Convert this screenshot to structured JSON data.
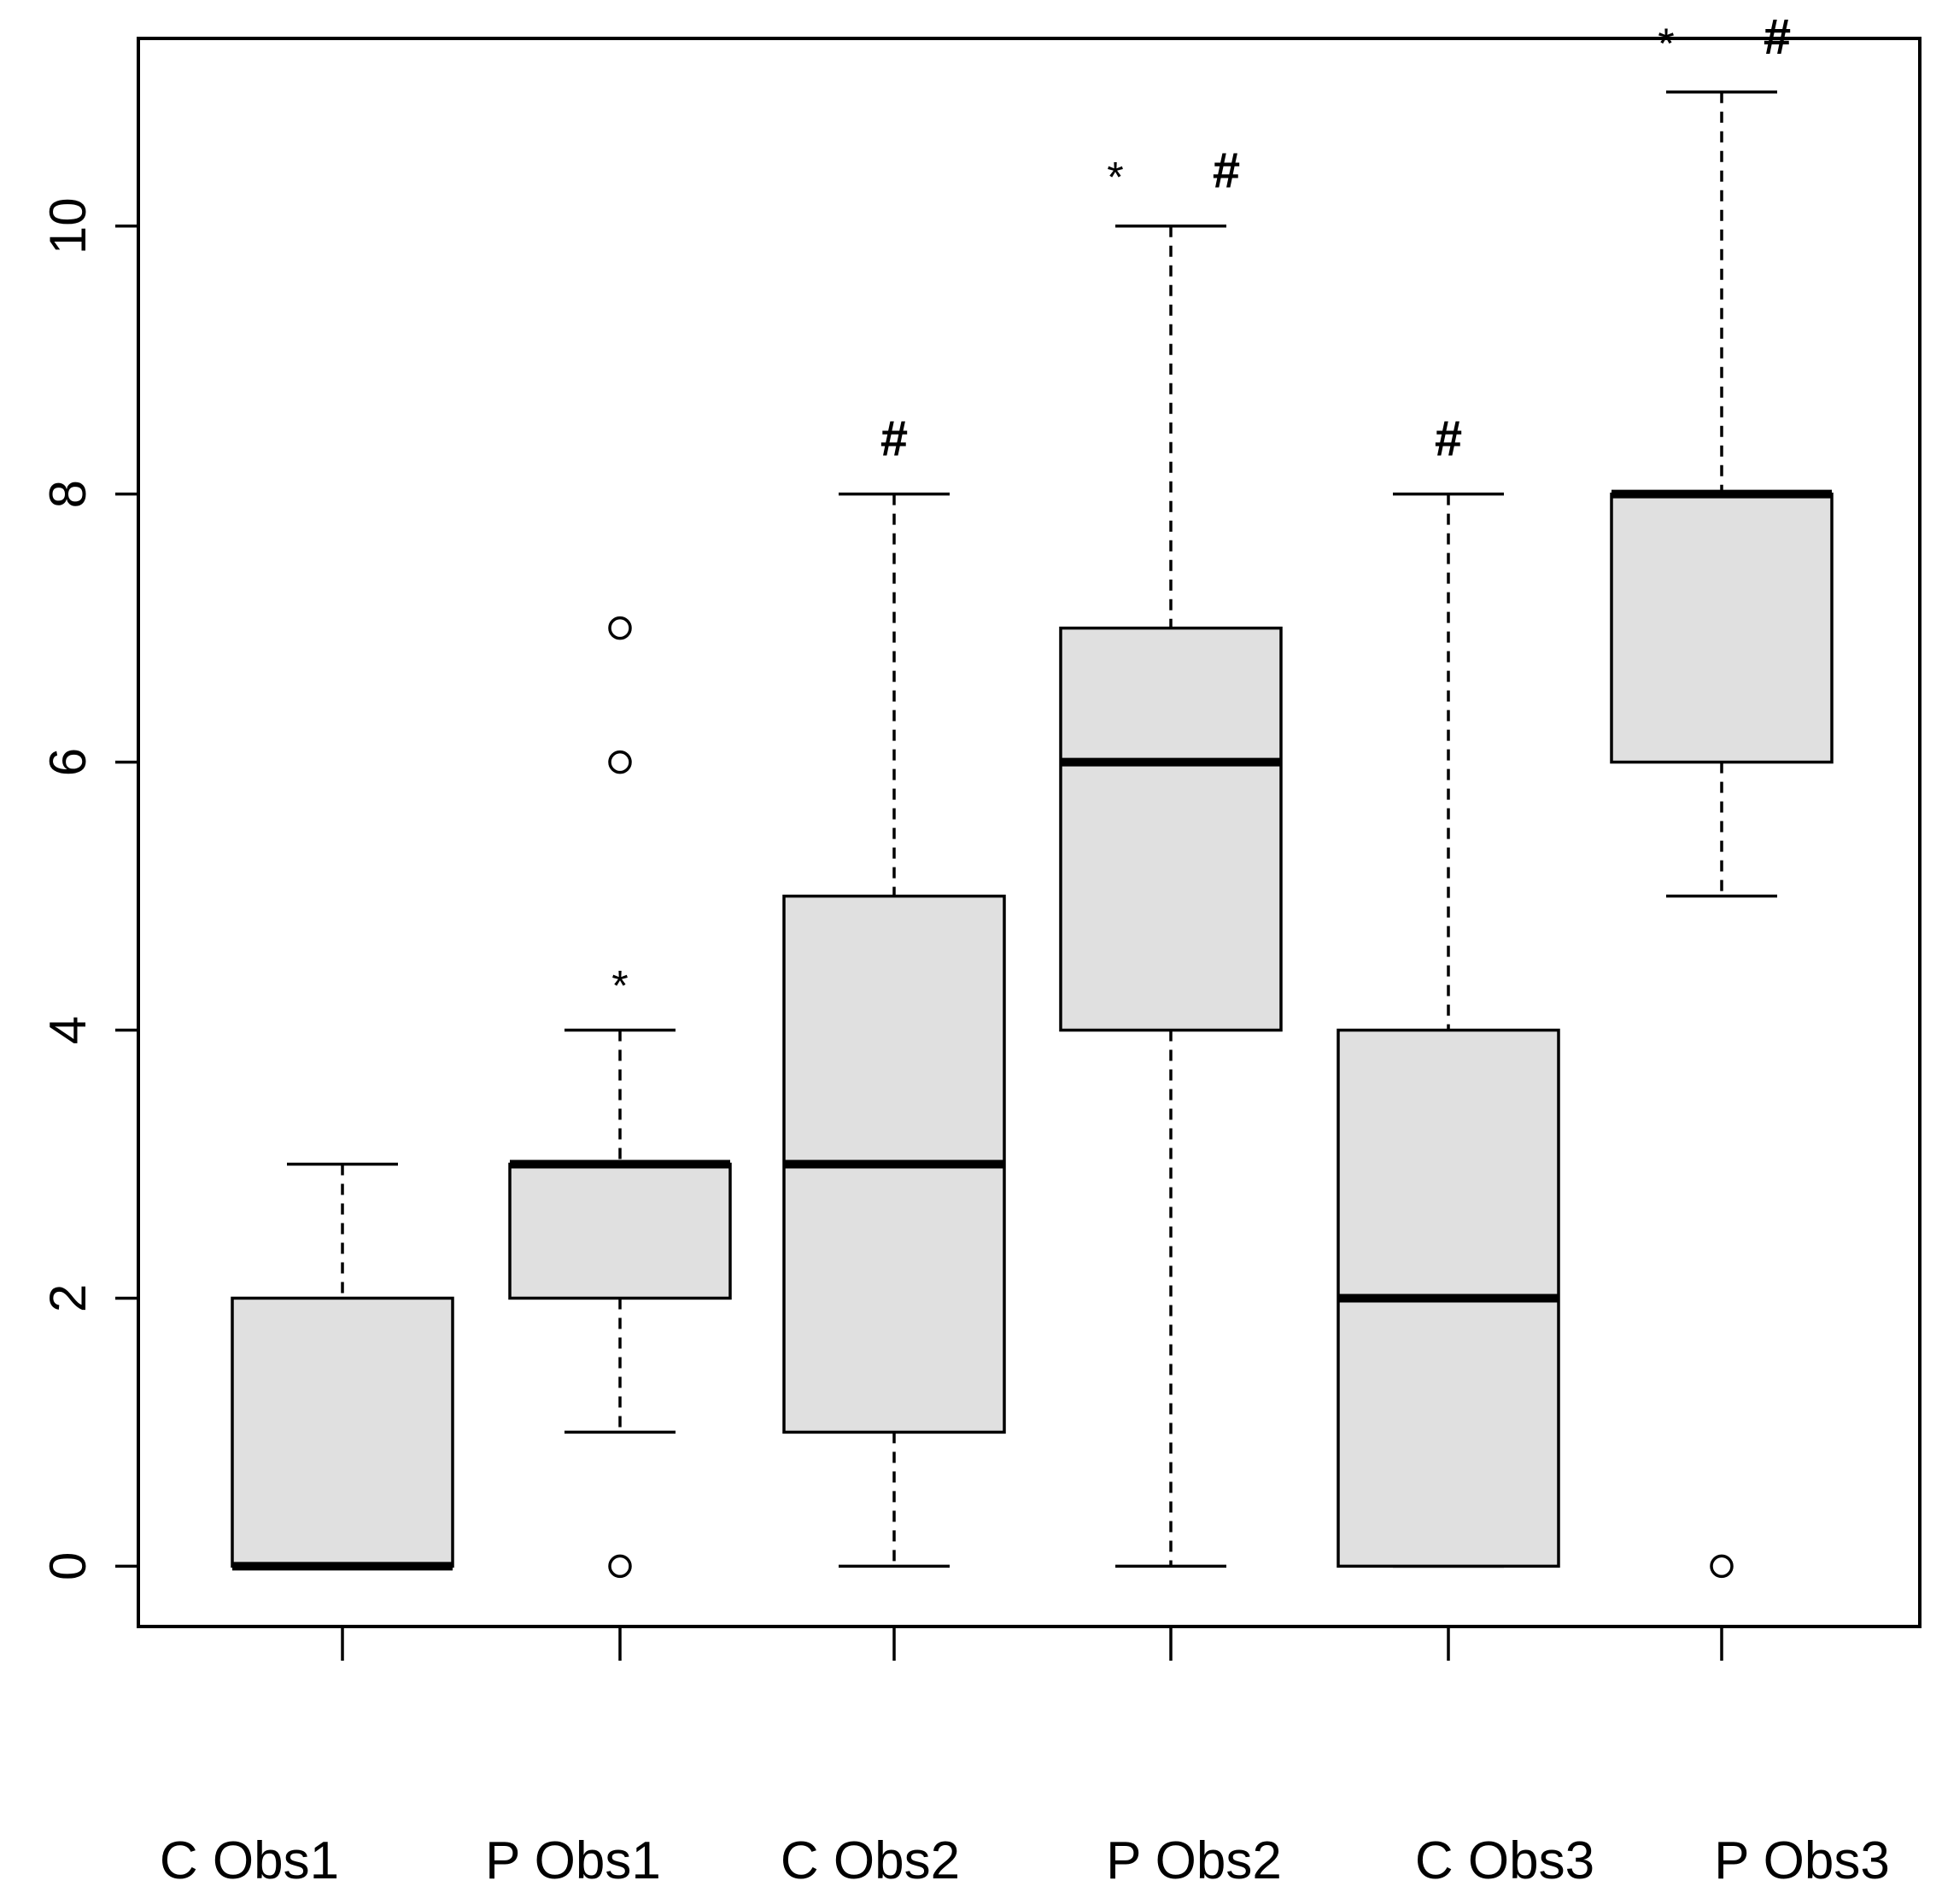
{
  "chart_data": {
    "type": "box",
    "title": "",
    "xlabel": "",
    "ylabel": "",
    "ylim": [
      -0.45,
      11.4
    ],
    "yticks": [
      0,
      2,
      4,
      6,
      8,
      10
    ],
    "ytick_labels": [
      "0",
      "2",
      "4",
      "6",
      "8",
      "10"
    ],
    "grid": false,
    "colors": {
      "box_fill": "#e0e0e0",
      "line": "#000000",
      "background": "#ffffff"
    },
    "groups": [
      {
        "name": "C Obs1",
        "whisker_low": 0,
        "q1": 0,
        "median": 0,
        "q3": 2,
        "whisker_high": 3,
        "outliers": [],
        "annotations": []
      },
      {
        "name": "P Obs1",
        "whisker_low": 1,
        "q1": 2,
        "median": 3,
        "q3": 3,
        "whisker_high": 4,
        "outliers": [
          0,
          6,
          7
        ],
        "annotations": [
          "*"
        ]
      },
      {
        "name": "C Obs2",
        "whisker_low": 0,
        "q1": 1,
        "median": 3,
        "q3": 5,
        "whisker_high": 8,
        "outliers": [],
        "annotations": [
          "#"
        ]
      },
      {
        "name": "P Obs2",
        "whisker_low": 0,
        "q1": 4,
        "median": 6,
        "q3": 7,
        "whisker_high": 10,
        "outliers": [],
        "annotations": [
          "*",
          "#"
        ]
      },
      {
        "name": "C Obs3",
        "whisker_low": 0,
        "q1": 0,
        "median": 2,
        "q3": 4,
        "whisker_high": 8,
        "outliers": [],
        "annotations": [
          "#"
        ]
      },
      {
        "name": "P Obs3",
        "whisker_low": 5,
        "q1": 6,
        "median": 8,
        "q3": 8,
        "whisker_high": 11,
        "outliers": [
          0
        ],
        "annotations": [
          "*",
          "#"
        ]
      }
    ]
  }
}
